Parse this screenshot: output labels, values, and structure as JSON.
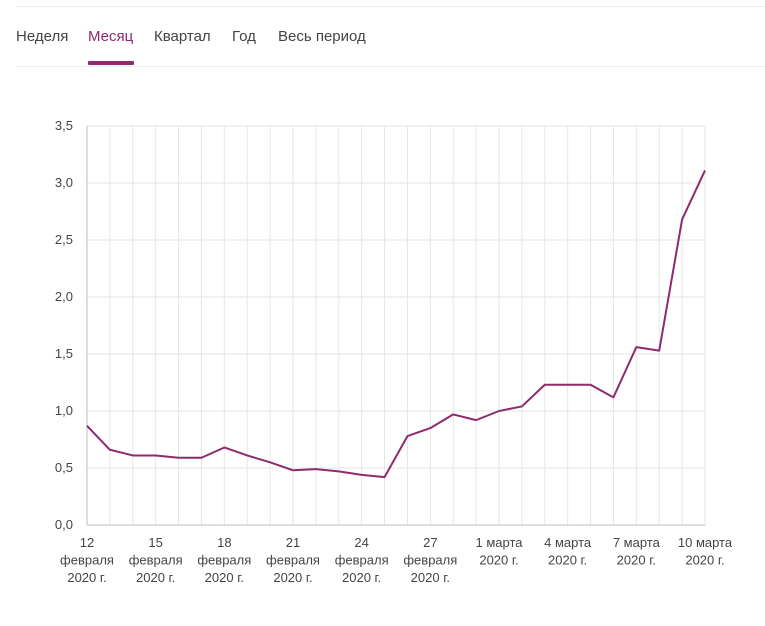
{
  "tabs": [
    {
      "label": "Неделя",
      "active": false
    },
    {
      "label": "Месяц",
      "active": true
    },
    {
      "label": "Квартал",
      "active": false
    },
    {
      "label": "Год",
      "active": false
    },
    {
      "label": "Весь период",
      "active": false
    }
  ],
  "colors": {
    "accent": "#8e2a6e",
    "grid": "#e6e6e6",
    "axis": "#bdbdbd",
    "text": "#444444"
  },
  "chart_data": {
    "type": "line",
    "title": "",
    "xlabel": "",
    "ylabel": "",
    "ylim": [
      0,
      3.5
    ],
    "yticks": [
      "0,0",
      "0,5",
      "1,0",
      "1,5",
      "2,0",
      "2,5",
      "3,0",
      "3,5"
    ],
    "grid": true,
    "x": [
      "2020-02-12",
      "2020-02-13",
      "2020-02-14",
      "2020-02-15",
      "2020-02-16",
      "2020-02-17",
      "2020-02-18",
      "2020-02-19",
      "2020-02-20",
      "2020-02-21",
      "2020-02-22",
      "2020-02-23",
      "2020-02-24",
      "2020-02-25",
      "2020-02-26",
      "2020-02-27",
      "2020-02-28",
      "2020-02-29",
      "2020-03-01",
      "2020-03-02",
      "2020-03-03",
      "2020-03-04",
      "2020-03-05",
      "2020-03-06",
      "2020-03-07",
      "2020-03-08",
      "2020-03-09",
      "2020-03-10"
    ],
    "xtick_labels": [
      [
        "12",
        "февраля",
        "2020 г."
      ],
      [
        "15",
        "февраля",
        "2020 г."
      ],
      [
        "18",
        "февраля",
        "2020 г."
      ],
      [
        "21",
        "февраля",
        "2020 г."
      ],
      [
        "24",
        "февраля",
        "2020 г."
      ],
      [
        "27",
        "февраля",
        "2020 г."
      ],
      [
        "1 марта",
        "2020 г."
      ],
      [
        "4 марта",
        "2020 г."
      ],
      [
        "7 марта",
        "2020 г."
      ],
      [
        "10 марта",
        "2020 г."
      ]
    ],
    "series": [
      {
        "values": [
          0.87,
          0.66,
          0.61,
          0.61,
          0.59,
          0.59,
          0.68,
          0.61,
          0.55,
          0.48,
          0.49,
          0.47,
          0.44,
          0.42,
          0.78,
          0.85,
          0.97,
          0.92,
          1.0,
          1.04,
          1.23,
          1.23,
          1.23,
          1.12,
          1.56,
          1.53,
          2.68,
          3.11
        ]
      }
    ]
  }
}
